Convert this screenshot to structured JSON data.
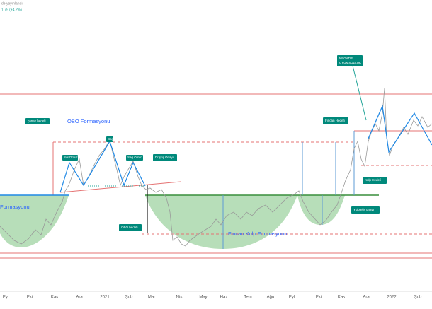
{
  "header": {
    "published": "de yayınlandı",
    "change": "1.79 (+4.2%)"
  },
  "annotations": {
    "obo_title": "OBO Formasyonu",
    "cup_left": "Formasyonu",
    "canak_hedefi": "çanak hedefi",
    "sol_omuz": "Sol Omuz",
    "bas": "Baş",
    "sag_omuz": "Sağ Omuz",
    "dusus_onayi": "Düşüş Onayı",
    "obo_hedefi": "OBO hedefi",
    "fincan_kulp": "Fincan Kulp Formasyonu",
    "fincan_hedefi": "Fincan Hedefi",
    "kulp_hedefi": "Kulp Hedefi",
    "yukselis_onayi": "Yükseliş onayı",
    "negatif": "NEGATİF",
    "uyumsuzluk": "UYUMSUZLUK"
  },
  "x_axis": [
    "Eyl",
    "Eki",
    "Kas",
    "Ara",
    "2021",
    "Şub",
    "Mar",
    "Nis",
    "May",
    "Haz",
    "Tem",
    "Ağu",
    "Eyl",
    "Eki",
    "Kas",
    "Ara",
    "2022",
    "Şub"
  ]
}
